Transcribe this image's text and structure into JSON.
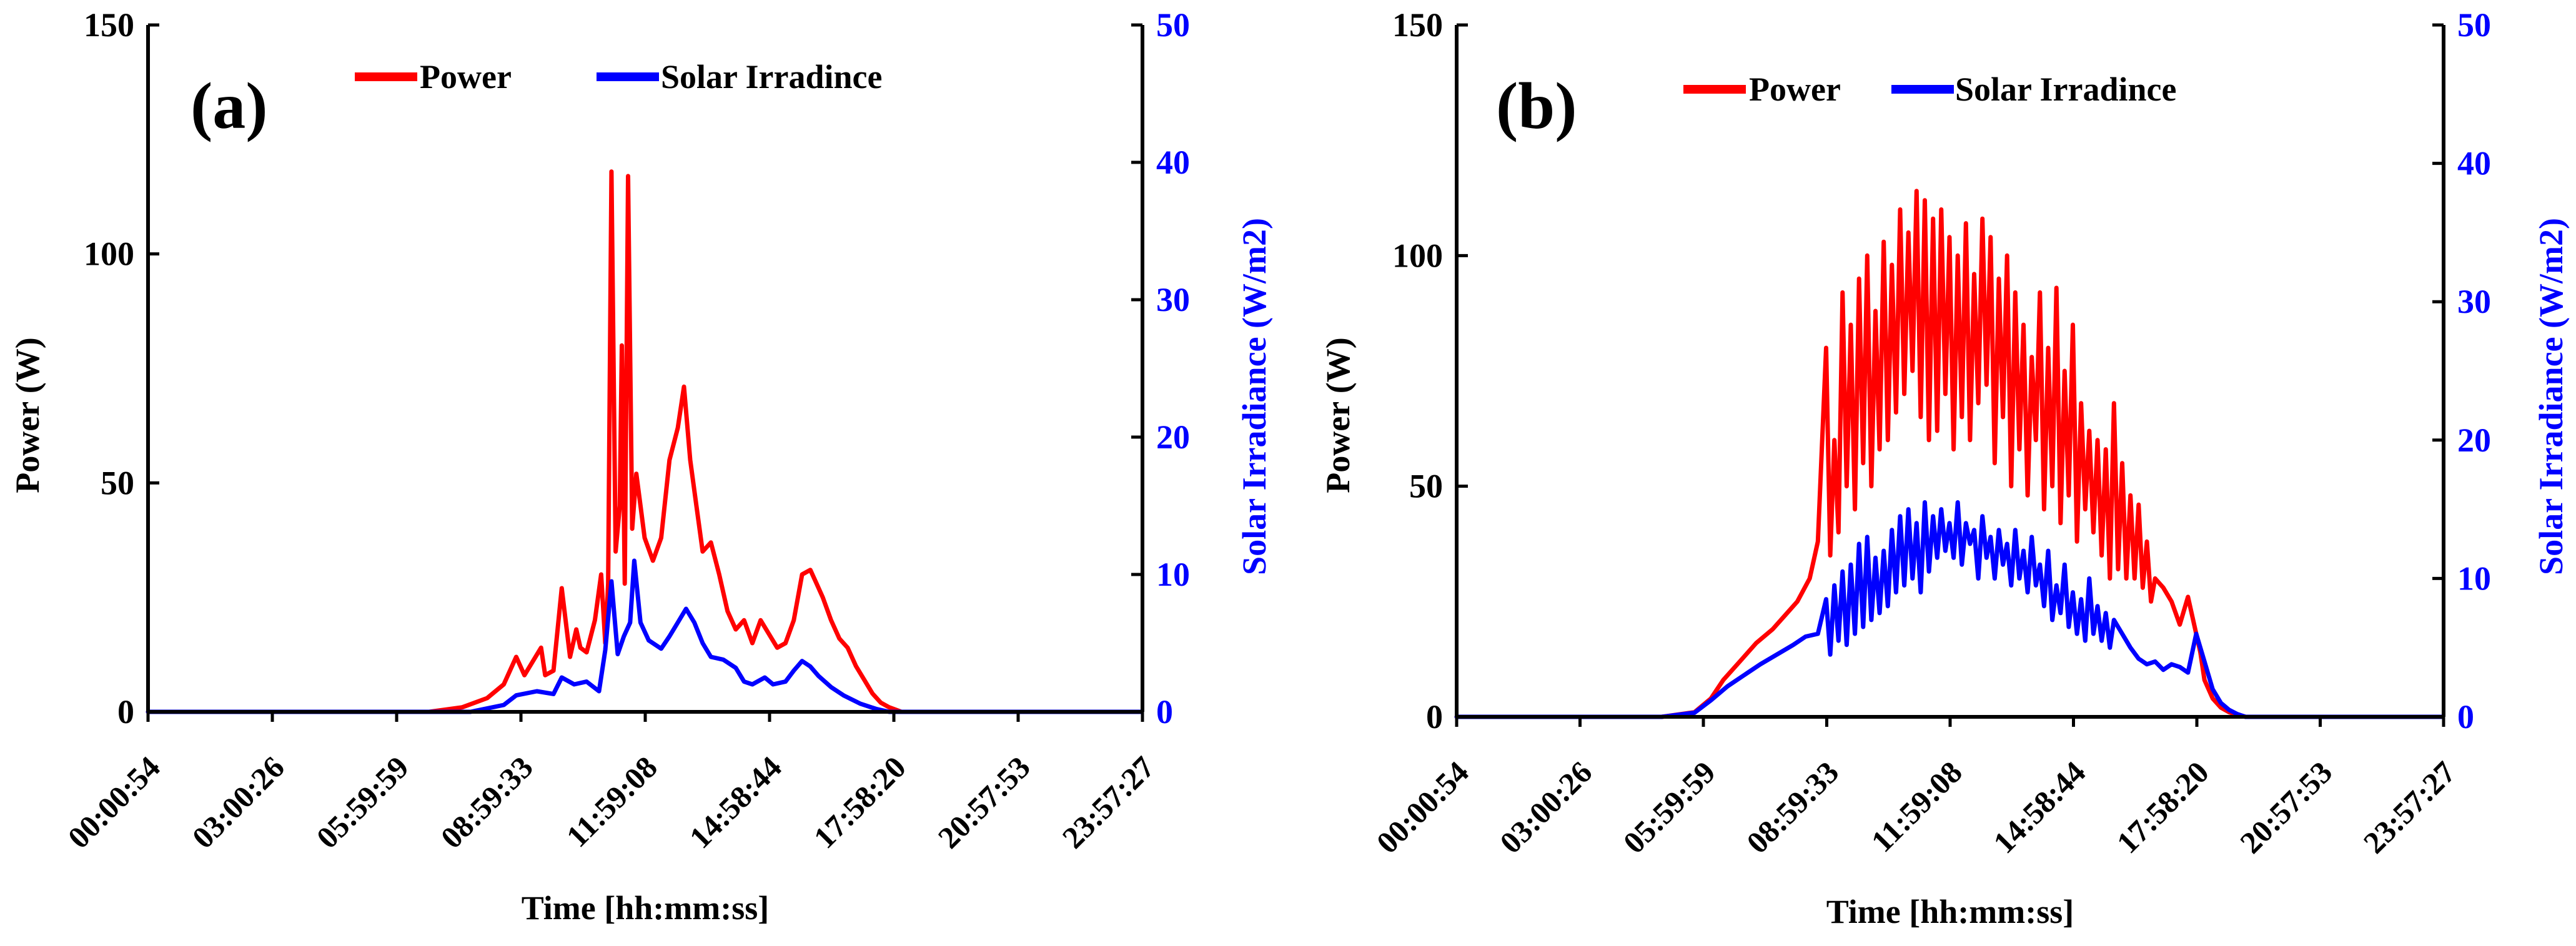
{
  "colors": {
    "power": "#ff0000",
    "irradiance": "#0000ff",
    "axis": "#000000",
    "right_axis": "#0000ff"
  },
  "chart_data": [
    {
      "type": "line",
      "panel_label": "(a)",
      "xlabel": "Time [hh:mm:ss]",
      "ylabel": "Power (W)",
      "y2label": "Solar Irradiance (W/m2)",
      "x_tick_labels": [
        "00:00:54",
        "03:00:26",
        "05:59:59",
        "08:59:33",
        "11:59:08",
        "14:58:44",
        "17:58:20",
        "20:57:53",
        "23:57:27"
      ],
      "x_unit": "hours",
      "x_range": [
        0.015,
        24.015
      ],
      "ylim": [
        0,
        150
      ],
      "y_ticks": [
        0,
        50,
        100,
        150
      ],
      "y2lim": [
        0,
        50
      ],
      "y2_ticks": [
        0,
        10,
        20,
        30,
        40,
        50
      ],
      "legend": [
        "Power",
        "Solar Irradince"
      ],
      "series": [
        {
          "name": "Power",
          "axis": "left",
          "color": "#ff0000",
          "x": [
            0,
            6.8,
            7.6,
            8.2,
            8.6,
            8.9,
            9.1,
            9.3,
            9.5,
            9.6,
            9.8,
            10.0,
            10.2,
            10.35,
            10.45,
            10.6,
            10.8,
            10.95,
            11.05,
            11.12,
            11.2,
            11.3,
            11.4,
            11.45,
            11.52,
            11.6,
            11.7,
            11.8,
            11.9,
            12.0,
            12.2,
            12.4,
            12.6,
            12.8,
            12.95,
            13.1,
            13.25,
            13.4,
            13.6,
            13.8,
            14.0,
            14.2,
            14.4,
            14.6,
            14.8,
            15.0,
            15.2,
            15.4,
            15.6,
            15.8,
            16.0,
            16.15,
            16.3,
            16.5,
            16.7,
            16.9,
            17.1,
            17.3,
            17.5,
            17.7,
            17.9,
            18.2,
            24.0
          ],
          "values": [
            0,
            0,
            1,
            3,
            6,
            12,
            8,
            11,
            14,
            8,
            9,
            27,
            12,
            18,
            14,
            13,
            20,
            30,
            15,
            28,
            118,
            35,
            45,
            80,
            28,
            117,
            40,
            52,
            45,
            38,
            33,
            38,
            55,
            62,
            71,
            55,
            45,
            35,
            37,
            30,
            22,
            18,
            20,
            15,
            20,
            17,
            14,
            15,
            20,
            30,
            31,
            28,
            25,
            20,
            16,
            14,
            10,
            7,
            4,
            2,
            1,
            0,
            0
          ]
        },
        {
          "name": "Solar Irradince",
          "axis": "right",
          "color": "#0000ff",
          "x": [
            0,
            7.8,
            8.6,
            8.9,
            9.4,
            9.8,
            10.0,
            10.3,
            10.6,
            10.9,
            11.05,
            11.2,
            11.35,
            11.5,
            11.65,
            11.75,
            11.9,
            12.1,
            12.4,
            12.6,
            12.8,
            13.0,
            13.2,
            13.4,
            13.6,
            13.9,
            14.2,
            14.4,
            14.6,
            14.9,
            15.1,
            15.4,
            15.6,
            15.8,
            16.0,
            16.2,
            16.5,
            16.8,
            17.2,
            17.6,
            17.9,
            24.0
          ],
          "values": [
            0,
            0,
            0.5,
            1.2,
            1.5,
            1.3,
            2.5,
            2.0,
            2.2,
            1.5,
            4.5,
            9.5,
            4.2,
            5.5,
            6.5,
            11.0,
            6.5,
            5.2,
            4.6,
            5.5,
            6.5,
            7.5,
            6.5,
            5.0,
            4.0,
            3.8,
            3.2,
            2.2,
            2.0,
            2.5,
            2.0,
            2.2,
            3.0,
            3.7,
            3.3,
            2.6,
            1.8,
            1.2,
            0.6,
            0.2,
            0,
            0
          ]
        }
      ]
    },
    {
      "type": "line",
      "panel_label": "(b)",
      "xlabel": "Time [hh:mm:ss]",
      "ylabel": "Power (W)",
      "y2label": "Solar Irradiance (W/m2)",
      "x_tick_labels": [
        "00:00:54",
        "03:00:26",
        "05:59:59",
        "08:59:33",
        "11:59:08",
        "14:58:44",
        "17:58:20",
        "20:57:53",
        "23:57:27"
      ],
      "x_unit": "hours",
      "x_range": [
        0.015,
        24.015
      ],
      "ylim": [
        0,
        150
      ],
      "y_ticks": [
        0,
        50,
        100,
        150
      ],
      "y2lim": [
        0,
        50
      ],
      "y2_ticks": [
        0,
        10,
        20,
        30,
        40,
        50
      ],
      "legend": [
        "Power",
        "Solar Irradince"
      ],
      "series": [
        {
          "name": "Power",
          "axis": "left",
          "color": "#ff0000",
          "x": [
            0,
            5.0,
            5.8,
            6.2,
            6.5,
            6.9,
            7.3,
            7.7,
            8.0,
            8.3,
            8.6,
            8.8,
            9.0,
            9.1,
            9.2,
            9.3,
            9.4,
            9.5,
            9.6,
            9.7,
            9.8,
            9.9,
            10.0,
            10.1,
            10.2,
            10.3,
            10.4,
            10.5,
            10.6,
            10.7,
            10.8,
            10.9,
            11.0,
            11.1,
            11.2,
            11.3,
            11.4,
            11.5,
            11.6,
            11.7,
            11.8,
            11.9,
            12.0,
            12.1,
            12.2,
            12.3,
            12.4,
            12.5,
            12.6,
            12.7,
            12.8,
            12.9,
            13.0,
            13.1,
            13.2,
            13.3,
            13.4,
            13.5,
            13.6,
            13.7,
            13.8,
            13.9,
            14.0,
            14.1,
            14.2,
            14.3,
            14.4,
            14.5,
            14.6,
            14.7,
            14.8,
            14.9,
            15.0,
            15.1,
            15.2,
            15.3,
            15.4,
            15.5,
            15.6,
            15.7,
            15.8,
            15.9,
            16.0,
            16.1,
            16.2,
            16.3,
            16.4,
            16.5,
            16.6,
            16.7,
            16.8,
            16.9,
            17.0,
            17.2,
            17.4,
            17.6,
            17.8,
            18.0,
            18.1,
            18.2,
            18.4,
            18.6,
            18.8,
            19.0,
            19.2,
            19.5,
            24.0
          ],
          "values": [
            0,
            0,
            1,
            4,
            8,
            12,
            16,
            19,
            22,
            25,
            30,
            38,
            80,
            35,
            60,
            40,
            92,
            50,
            85,
            45,
            95,
            55,
            100,
            50,
            88,
            58,
            103,
            60,
            98,
            66,
            110,
            70,
            105,
            75,
            114,
            65,
            112,
            60,
            108,
            62,
            110,
            70,
            104,
            58,
            100,
            65,
            107,
            60,
            96,
            68,
            108,
            72,
            104,
            55,
            95,
            65,
            100,
            50,
            92,
            58,
            85,
            48,
            78,
            60,
            92,
            45,
            80,
            50,
            93,
            42,
            75,
            48,
            85,
            38,
            68,
            45,
            62,
            40,
            60,
            35,
            58,
            30,
            68,
            32,
            55,
            30,
            48,
            30,
            46,
            28,
            38,
            25,
            30,
            28,
            25,
            20,
            26,
            18,
            14,
            8,
            4,
            2,
            1,
            0.5,
            0,
            0,
            0
          ]
        },
        {
          "name": "Solar Irradince",
          "axis": "right",
          "color": "#0000ff",
          "x": [
            0,
            5.0,
            5.8,
            6.2,
            6.6,
            7.0,
            7.4,
            7.8,
            8.2,
            8.5,
            8.8,
            9.0,
            9.1,
            9.2,
            9.3,
            9.4,
            9.5,
            9.6,
            9.7,
            9.8,
            9.9,
            10.0,
            10.1,
            10.2,
            10.3,
            10.4,
            10.5,
            10.6,
            10.7,
            10.8,
            10.9,
            11.0,
            11.1,
            11.2,
            11.3,
            11.4,
            11.5,
            11.6,
            11.7,
            11.8,
            11.9,
            12.0,
            12.1,
            12.2,
            12.3,
            12.4,
            12.5,
            12.6,
            12.7,
            12.8,
            12.9,
            13.0,
            13.1,
            13.2,
            13.3,
            13.4,
            13.5,
            13.6,
            13.7,
            13.8,
            13.9,
            14.0,
            14.1,
            14.2,
            14.3,
            14.4,
            14.5,
            14.6,
            14.7,
            14.8,
            14.9,
            15.0,
            15.1,
            15.2,
            15.3,
            15.4,
            15.5,
            15.6,
            15.7,
            15.8,
            15.9,
            16.0,
            16.2,
            16.4,
            16.6,
            16.8,
            17.0,
            17.2,
            17.4,
            17.6,
            17.8,
            18.0,
            18.1,
            18.2,
            18.4,
            18.6,
            18.8,
            19.0,
            19.2,
            19.5,
            24.0
          ],
          "values": [
            0,
            0,
            0.3,
            1.2,
            2.2,
            3.0,
            3.8,
            4.5,
            5.2,
            5.8,
            6.0,
            8.5,
            4.5,
            9.5,
            5.5,
            10.5,
            5.2,
            11.0,
            6.0,
            12.5,
            6.5,
            13.0,
            7.0,
            11.5,
            7.5,
            12.0,
            8.0,
            13.5,
            9.0,
            14.5,
            9.5,
            15.0,
            10.0,
            14.0,
            9.0,
            15.5,
            10.5,
            14.5,
            11.5,
            15.0,
            12.0,
            14.0,
            11.5,
            15.5,
            11.0,
            14.0,
            12.5,
            13.5,
            10.0,
            14.5,
            11.5,
            13.0,
            10.0,
            13.5,
            11.0,
            12.5,
            9.5,
            13.5,
            10.0,
            12.0,
            9.0,
            13.0,
            9.5,
            11.0,
            8.0,
            12.0,
            7.0,
            9.5,
            7.5,
            11.0,
            6.5,
            9.0,
            6.0,
            8.5,
            5.5,
            10.0,
            6.0,
            8.0,
            5.5,
            7.5,
            5.0,
            7.0,
            6.0,
            5.0,
            4.2,
            3.8,
            4.0,
            3.4,
            3.8,
            3.6,
            3.2,
            6.0,
            5.0,
            4.0,
            2.0,
            1.0,
            0.5,
            0.2,
            0,
            0,
            0
          ]
        }
      ]
    }
  ]
}
